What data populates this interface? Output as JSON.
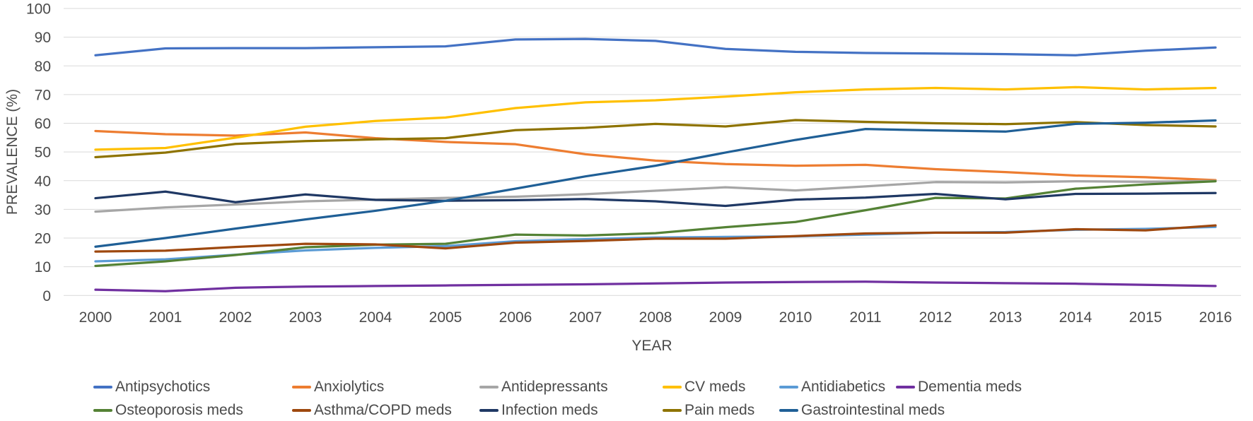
{
  "chart_data": {
    "type": "line",
    "title": "",
    "xlabel": "YEAR",
    "ylabel": "PREVALENCE (%)",
    "x": [
      2000,
      2001,
      2002,
      2003,
      2004,
      2005,
      2006,
      2007,
      2008,
      2009,
      2010,
      2011,
      2012,
      2013,
      2014,
      2015,
      2016
    ],
    "ylim": [
      0,
      100
    ],
    "yticks": [
      0,
      10,
      20,
      30,
      40,
      50,
      60,
      70,
      80,
      90,
      100
    ],
    "grid": true,
    "legend_position": "bottom",
    "gridline_color": "#d9d9d9",
    "text_color": "#4a4a4a",
    "series": [
      {
        "name": "Antipsychotics",
        "color": "#4472C4",
        "values": [
          83.7,
          86.1,
          86.2,
          86.2,
          86.5,
          86.8,
          89.2,
          89.4,
          88.7,
          85.9,
          84.9,
          84.5,
          84.3,
          84.1,
          83.7,
          85.3,
          86.4
        ]
      },
      {
        "name": "Anxiolytics",
        "color": "#ED7D31",
        "values": [
          57.3,
          56.2,
          55.7,
          56.8,
          54.8,
          53.5,
          52.7,
          49.2,
          47.0,
          45.8,
          45.2,
          45.5,
          44.0,
          43.0,
          41.8,
          41.2,
          40.2
        ]
      },
      {
        "name": "Antidepressants",
        "color": "#A6A6A6",
        "values": [
          29.2,
          30.7,
          31.7,
          32.8,
          33.4,
          34.0,
          34.4,
          35.3,
          36.5,
          37.7,
          36.6,
          38.0,
          39.5,
          39.4,
          39.8,
          39.6,
          39.9
        ]
      },
      {
        "name": "CV meds",
        "color": "#FFC000",
        "values": [
          50.8,
          51.4,
          55.0,
          58.8,
          60.8,
          62.0,
          65.3,
          67.3,
          68.0,
          69.3,
          70.8,
          71.8,
          72.3,
          71.8,
          72.6,
          71.8,
          72.3
        ]
      },
      {
        "name": "Antidiabetics",
        "color": "#5B9BD5",
        "values": [
          11.9,
          12.6,
          14.2,
          15.7,
          16.6,
          17.2,
          18.9,
          19.6,
          20.2,
          20.4,
          20.6,
          21.2,
          21.9,
          22.1,
          22.9,
          23.2,
          23.9
        ]
      },
      {
        "name": "Dementia meds",
        "color": "#7030A0",
        "values": [
          2.0,
          1.5,
          2.7,
          3.1,
          3.3,
          3.5,
          3.7,
          3.9,
          4.2,
          4.5,
          4.7,
          4.8,
          4.5,
          4.3,
          4.1,
          3.7,
          3.3
        ]
      },
      {
        "name": "Osteoporosis meds",
        "color": "#548235",
        "values": [
          10.3,
          11.9,
          14.1,
          16.8,
          17.7,
          18.0,
          21.2,
          20.9,
          21.7,
          23.8,
          25.6,
          29.7,
          34.0,
          33.8,
          37.2,
          38.7,
          39.8
        ]
      },
      {
        "name": "Asthma/COPD meds",
        "color": "#9E480E",
        "values": [
          15.3,
          15.6,
          16.9,
          18.0,
          17.8,
          16.4,
          18.4,
          19.0,
          19.8,
          19.8,
          20.7,
          21.6,
          21.9,
          21.9,
          23.1,
          22.7,
          24.4
        ]
      },
      {
        "name": "Infection meds",
        "color": "#1F3864",
        "values": [
          33.9,
          36.2,
          32.5,
          35.2,
          33.3,
          33.0,
          33.2,
          33.6,
          32.8,
          31.2,
          33.4,
          34.1,
          35.4,
          33.5,
          35.4,
          35.5,
          35.7
        ]
      },
      {
        "name": "Pain meds",
        "color": "#8E7300",
        "values": [
          48.2,
          49.8,
          52.8,
          53.8,
          54.4,
          54.8,
          57.6,
          58.4,
          59.8,
          58.9,
          61.1,
          60.5,
          60.0,
          59.7,
          60.4,
          59.4,
          58.9
        ]
      },
      {
        "name": "Gastrointestinal meds",
        "color": "#1F5F96",
        "values": [
          17.0,
          20.0,
          23.3,
          26.5,
          29.5,
          33.0,
          37.2,
          41.5,
          45.2,
          49.8,
          54.2,
          58.0,
          57.5,
          57.1,
          59.8,
          60.2,
          61.0
        ]
      }
    ]
  }
}
